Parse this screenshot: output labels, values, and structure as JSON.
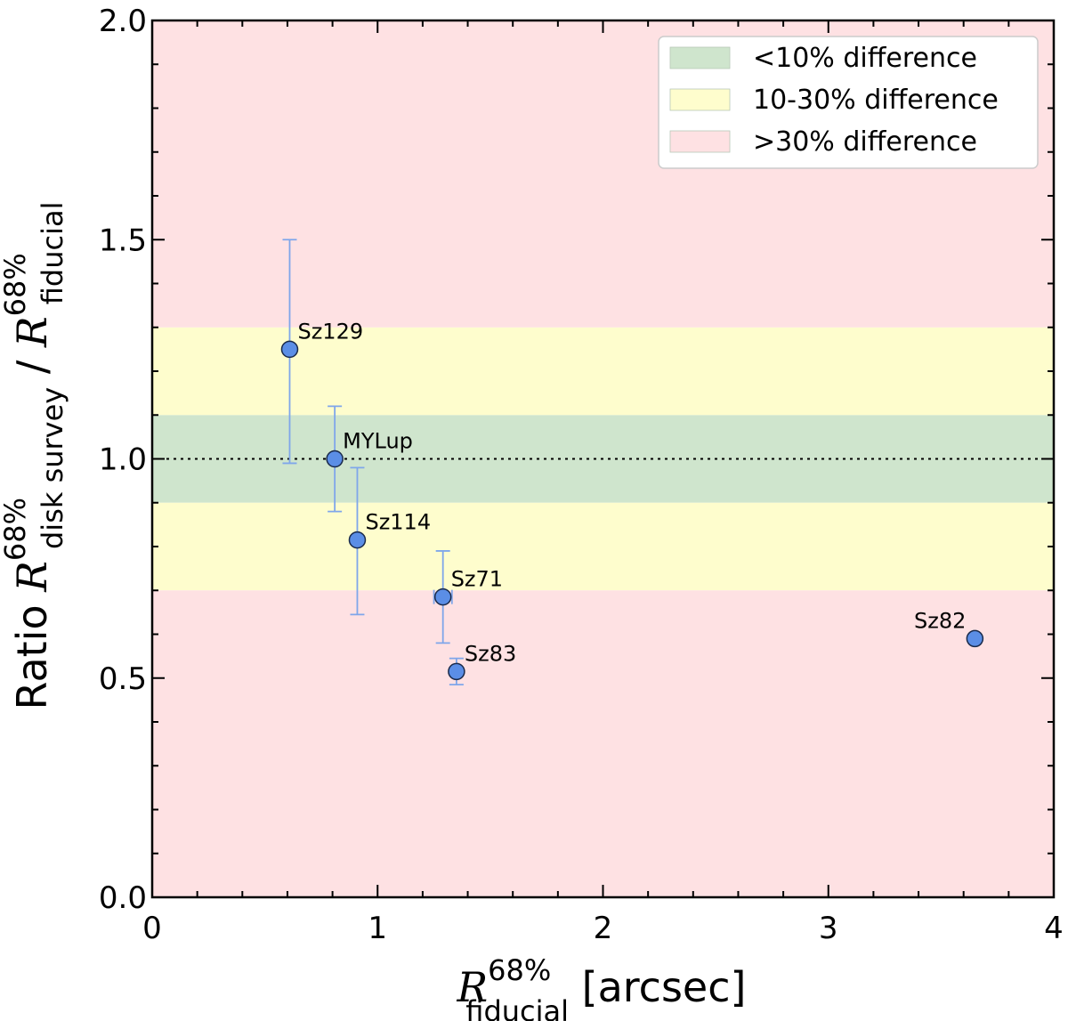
{
  "chart_data": {
    "type": "scatter",
    "title": "",
    "xlabel": {
      "symbol": "R",
      "sup": "68%",
      "sub": "fiducial",
      "unit": " [arcsec]"
    },
    "ylabel": {
      "prefix": "Ratio ",
      "num_symbol": "R",
      "num_sup": "68%",
      "num_sub": "disk survey",
      "divider": " / ",
      "den_symbol": "R",
      "den_sup": "68%",
      "den_sub": "fiducial"
    },
    "xlim": [
      0,
      4
    ],
    "ylim": [
      0,
      2
    ],
    "xticks": [
      0,
      1,
      2,
      3,
      4
    ],
    "xtick_labels": [
      "0",
      "1",
      "2",
      "3",
      "4"
    ],
    "yticks": [
      0,
      0.5,
      1.0,
      1.5,
      2.0
    ],
    "ytick_labels": [
      "0.0",
      "0.5",
      "1.0",
      "1.5",
      "2.0"
    ],
    "reference_line": 1.0,
    "bands": [
      {
        "label": "<10% difference",
        "ranges": [
          [
            0.9,
            1.1
          ]
        ],
        "color": "#cfe5cd"
      },
      {
        "label": "10-30% difference",
        "ranges": [
          [
            0.7,
            0.9
          ],
          [
            1.1,
            1.3
          ]
        ],
        "color": "#fefdcd"
      },
      {
        "label": ">30% difference",
        "ranges": [
          [
            0,
            0.7
          ],
          [
            1.3,
            2.0
          ]
        ],
        "color": "#fee1e3"
      }
    ],
    "legend_position": "top-right",
    "marker_color": "#5b8ee6",
    "errorbar_color": "#7fa6ea",
    "points": [
      {
        "name": "Sz129",
        "x": 0.61,
        "y": 1.25,
        "yerr_low": 0.26,
        "yerr_high": 0.25,
        "xerr": 0,
        "label_pos": "upper-right"
      },
      {
        "name": "MYLup",
        "x": 0.81,
        "y": 1.0,
        "yerr_low": 0.12,
        "yerr_high": 0.12,
        "xerr": 0,
        "label_pos": "upper-right"
      },
      {
        "name": "Sz114",
        "x": 0.91,
        "y": 0.815,
        "yerr_low": 0.17,
        "yerr_high": 0.165,
        "xerr": 0,
        "label_pos": "upper-right"
      },
      {
        "name": "Sz71",
        "x": 1.29,
        "y": 0.685,
        "yerr_low": 0.105,
        "yerr_high": 0.105,
        "xerr": 0.04,
        "label_pos": "upper-right"
      },
      {
        "name": "Sz83",
        "x": 1.35,
        "y": 0.515,
        "yerr_low": 0.03,
        "yerr_high": 0.03,
        "xerr": 0,
        "label_pos": "upper-right"
      },
      {
        "name": "Sz82",
        "x": 3.65,
        "y": 0.59,
        "yerr_low": 0,
        "yerr_high": 0,
        "xerr": 0,
        "label_pos": "upper-left"
      }
    ]
  }
}
